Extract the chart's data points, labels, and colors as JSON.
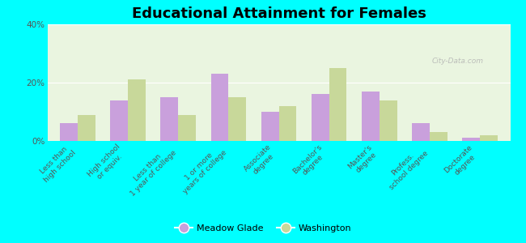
{
  "title": "Educational Attainment for Females",
  "categories": [
    "Less than\nhigh school",
    "High school\nor equiv.",
    "Less than\n1 year of college",
    "1 or more\nyears of college",
    "Associate\ndegree",
    "Bachelor's\ndegree",
    "Master's\ndegree",
    "Profess.\nschool degree",
    "Doctorate\ndegree"
  ],
  "meadow_glade": [
    6,
    14,
    15,
    23,
    10,
    16,
    17,
    6,
    1
  ],
  "washington": [
    9,
    21,
    9,
    15,
    12,
    25,
    14,
    3,
    2
  ],
  "meadow_color": "#c9a0dc",
  "washington_color": "#c8d89a",
  "bg_color": "#00ffff",
  "plot_bg": "#eaf5e0",
  "ylim": [
    0,
    40
  ],
  "yticks": [
    0,
    20,
    40
  ],
  "ytick_labels": [
    "0%",
    "20%",
    "40%"
  ],
  "legend_meadow": "Meadow Glade",
  "legend_washington": "Washington",
  "title_fontsize": 13,
  "label_fontsize": 6.5,
  "bar_width": 0.35
}
